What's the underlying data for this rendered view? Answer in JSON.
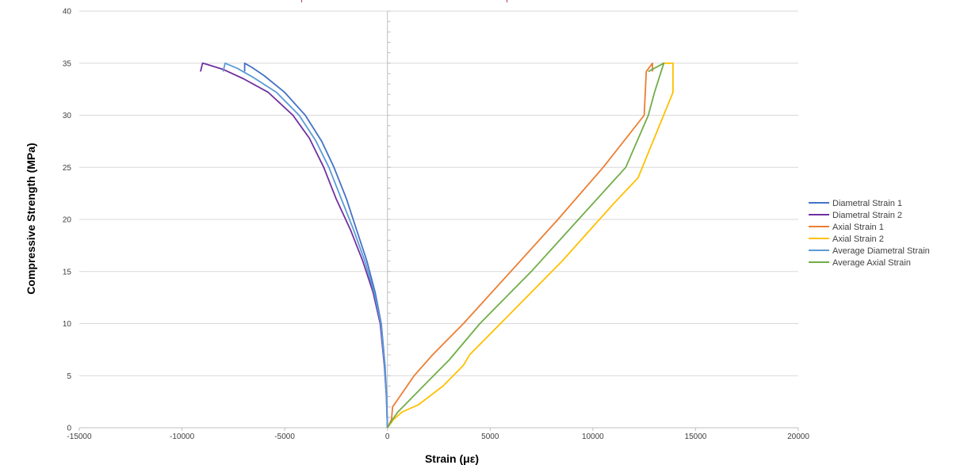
{
  "chart_data": {
    "type": "line",
    "xlabel": "Strain (με)",
    "ylabel": "Compressive Strength (MPa)",
    "xlim": [
      -15000,
      20000
    ],
    "ylim": [
      0,
      40
    ],
    "xticks": [
      -15000,
      -10000,
      -5000,
      0,
      5000,
      10000,
      15000,
      20000
    ],
    "yticks": [
      0,
      5,
      10,
      15,
      20,
      25,
      30,
      35,
      40
    ],
    "grid": "horizontal",
    "legend_position": "right",
    "series": [
      {
        "name": "Diametral Strain 1",
        "color": "#4472C4",
        "points": [
          [
            0,
            0
          ],
          [
            -40,
            3
          ],
          [
            -120,
            6
          ],
          [
            -300,
            10
          ],
          [
            -600,
            13
          ],
          [
            -1000,
            16
          ],
          [
            -1500,
            19
          ],
          [
            -2000,
            22
          ],
          [
            -2600,
            25
          ],
          [
            -3200,
            27.5
          ],
          [
            -4000,
            30
          ],
          [
            -5000,
            32.2
          ],
          [
            -6000,
            33.8
          ],
          [
            -6600,
            34.6
          ],
          [
            -6950,
            35
          ],
          [
            -6950,
            34.2
          ]
        ]
      },
      {
        "name": "Diametral Strain 2",
        "color": "#7030A0",
        "points": [
          [
            0,
            0
          ],
          [
            -50,
            3
          ],
          [
            -150,
            6
          ],
          [
            -350,
            10
          ],
          [
            -700,
            13
          ],
          [
            -1200,
            16
          ],
          [
            -1800,
            19
          ],
          [
            -2500,
            22
          ],
          [
            -3100,
            25
          ],
          [
            -3800,
            27.8
          ],
          [
            -4600,
            30
          ],
          [
            -5800,
            32.2
          ],
          [
            -7000,
            33.5
          ],
          [
            -8000,
            34.4
          ],
          [
            -8800,
            34.9
          ],
          [
            -9000,
            35
          ],
          [
            -9100,
            34.2
          ]
        ]
      },
      {
        "name": "Axial Strain 1",
        "color": "#ED7D31",
        "points": [
          [
            0,
            0
          ],
          [
            200,
            0.8
          ],
          [
            250,
            2
          ],
          [
            600,
            3
          ],
          [
            1300,
            5
          ],
          [
            2200,
            7
          ],
          [
            3700,
            10
          ],
          [
            6000,
            15
          ],
          [
            8300,
            20
          ],
          [
            10500,
            25
          ],
          [
            12500,
            30
          ],
          [
            12600,
            34.2
          ],
          [
            12900,
            35
          ],
          [
            12900,
            34.2
          ]
        ]
      },
      {
        "name": "Axial Strain 2",
        "color": "#FFC000",
        "points": [
          [
            0,
            0
          ],
          [
            300,
            0.8
          ],
          [
            700,
            1.5
          ],
          [
            1500,
            2.2
          ],
          [
            2700,
            4
          ],
          [
            3700,
            6
          ],
          [
            4000,
            7
          ],
          [
            6000,
            11
          ],
          [
            8500,
            16
          ],
          [
            11000,
            21.5
          ],
          [
            12200,
            24
          ],
          [
            13900,
            32.2
          ],
          [
            13900,
            35
          ],
          [
            13400,
            35
          ]
        ]
      },
      {
        "name": "Average Diametral Strain",
        "color": "#5B9BD5",
        "points": [
          [
            0,
            0
          ],
          [
            -45,
            3
          ],
          [
            -135,
            6
          ],
          [
            -320,
            10
          ],
          [
            -650,
            13
          ],
          [
            -1100,
            16
          ],
          [
            -1650,
            19
          ],
          [
            -2250,
            22
          ],
          [
            -2850,
            25
          ],
          [
            -3500,
            27.6
          ],
          [
            -4300,
            30
          ],
          [
            -5400,
            32.2
          ],
          [
            -6500,
            33.6
          ],
          [
            -7300,
            34.5
          ],
          [
            -7900,
            35
          ],
          [
            -8000,
            34.2
          ]
        ]
      },
      {
        "name": "Average Axial Strain",
        "color": "#70AD47",
        "points": [
          [
            0,
            0
          ],
          [
            250,
            0.8
          ],
          [
            500,
            1.5
          ],
          [
            1000,
            2.5
          ],
          [
            2000,
            4.5
          ],
          [
            3000,
            6.5
          ],
          [
            4500,
            10
          ],
          [
            7000,
            15
          ],
          [
            9300,
            20
          ],
          [
            11600,
            25
          ],
          [
            12700,
            30
          ],
          [
            13000,
            32.2
          ],
          [
            13450,
            35
          ],
          [
            12700,
            34.2
          ]
        ]
      }
    ]
  }
}
